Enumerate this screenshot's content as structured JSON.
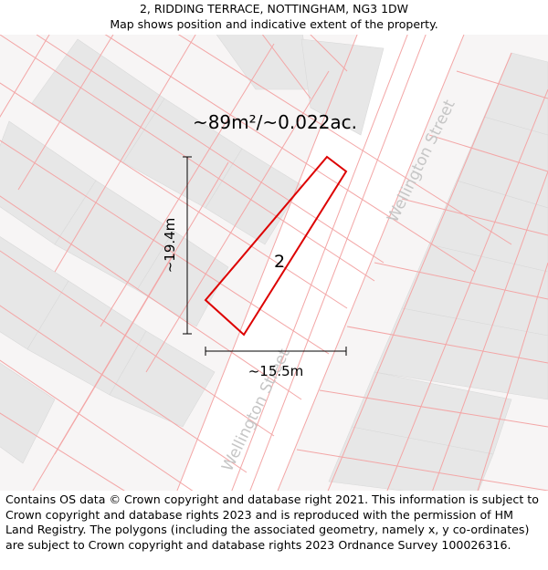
{
  "header": {
    "address": "2, RIDDING TERRACE, NOTTINGHAM, NG3 1DW",
    "subtitle": "Map shows position and indicative extent of the property."
  },
  "map": {
    "area_label": "~89m²/~0.022ac.",
    "plot_number": "2",
    "height_label": "~19.4m",
    "width_label": "~15.5m",
    "street_labels": [
      "Wellington Street",
      "Wellington Street"
    ],
    "colors": {
      "boundary": "#dd0000",
      "parcel_lines": "#f3a6a6",
      "buildings": "#e8e8e8",
      "background": "#f7f5f5",
      "road": "#ffffff",
      "street_text": "#c6c6c6"
    }
  },
  "footer": {
    "attribution": "Contains OS data © Crown copyright and database right 2021. This information is subject to Crown copyright and database rights 2023 and is reproduced with the permission of HM Land Registry. The polygons (including the associated geometry, namely x, y co-ordinates) are subject to Crown copyright and database rights 2023 Ordnance Survey 100026316."
  }
}
